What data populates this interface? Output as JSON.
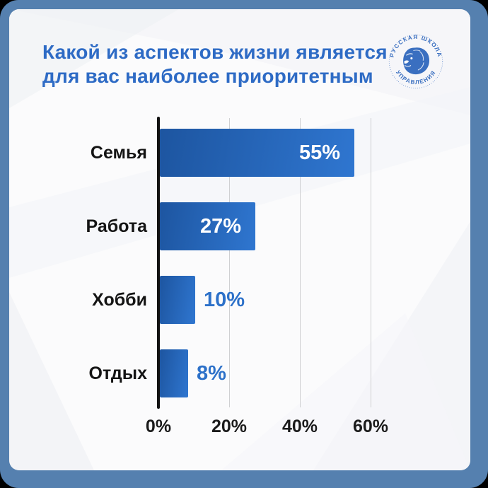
{
  "title": {
    "text": "Какой из аспектов жизни является для вас наиболее приоритетным",
    "line1": "Какой из аспектов жизни является",
    "line2": "для вас наиболее приоритетным"
  },
  "logo": {
    "arc_top": "РУССКАЯ ШКОЛА",
    "arc_bottom": "УПРАВЛЕНИЯ"
  },
  "colors": {
    "frame": "#5580af",
    "card_bg": "#fbfbfc",
    "brand": "#2e6bc5",
    "logo": "#3a6fc0",
    "bar_gradient": [
      "#1d55a0",
      "#2f76d0"
    ],
    "value_inside": "#ffffff",
    "value_outside": "#2d71c9",
    "category": "#141414",
    "tick": "#1b1b1b",
    "gridline": "#cfd0d2",
    "axis": "#121212"
  },
  "chart_data": {
    "type": "bar",
    "orientation": "horizontal",
    "title": "Какой из аспектов жизни является для вас наиболее приоритетным",
    "categories": [
      "Семья",
      "Работа",
      "Хобби",
      "Отдых"
    ],
    "values": [
      55,
      27,
      10,
      8
    ],
    "value_labels": [
      "55%",
      "27%",
      "10%",
      "8%"
    ],
    "x_ticks": [
      "0%",
      "20%",
      "40%",
      "60%"
    ],
    "x_tick_values": [
      0,
      20,
      40,
      60
    ],
    "xlim": [
      0,
      80
    ],
    "grid": true,
    "legend": false
  }
}
